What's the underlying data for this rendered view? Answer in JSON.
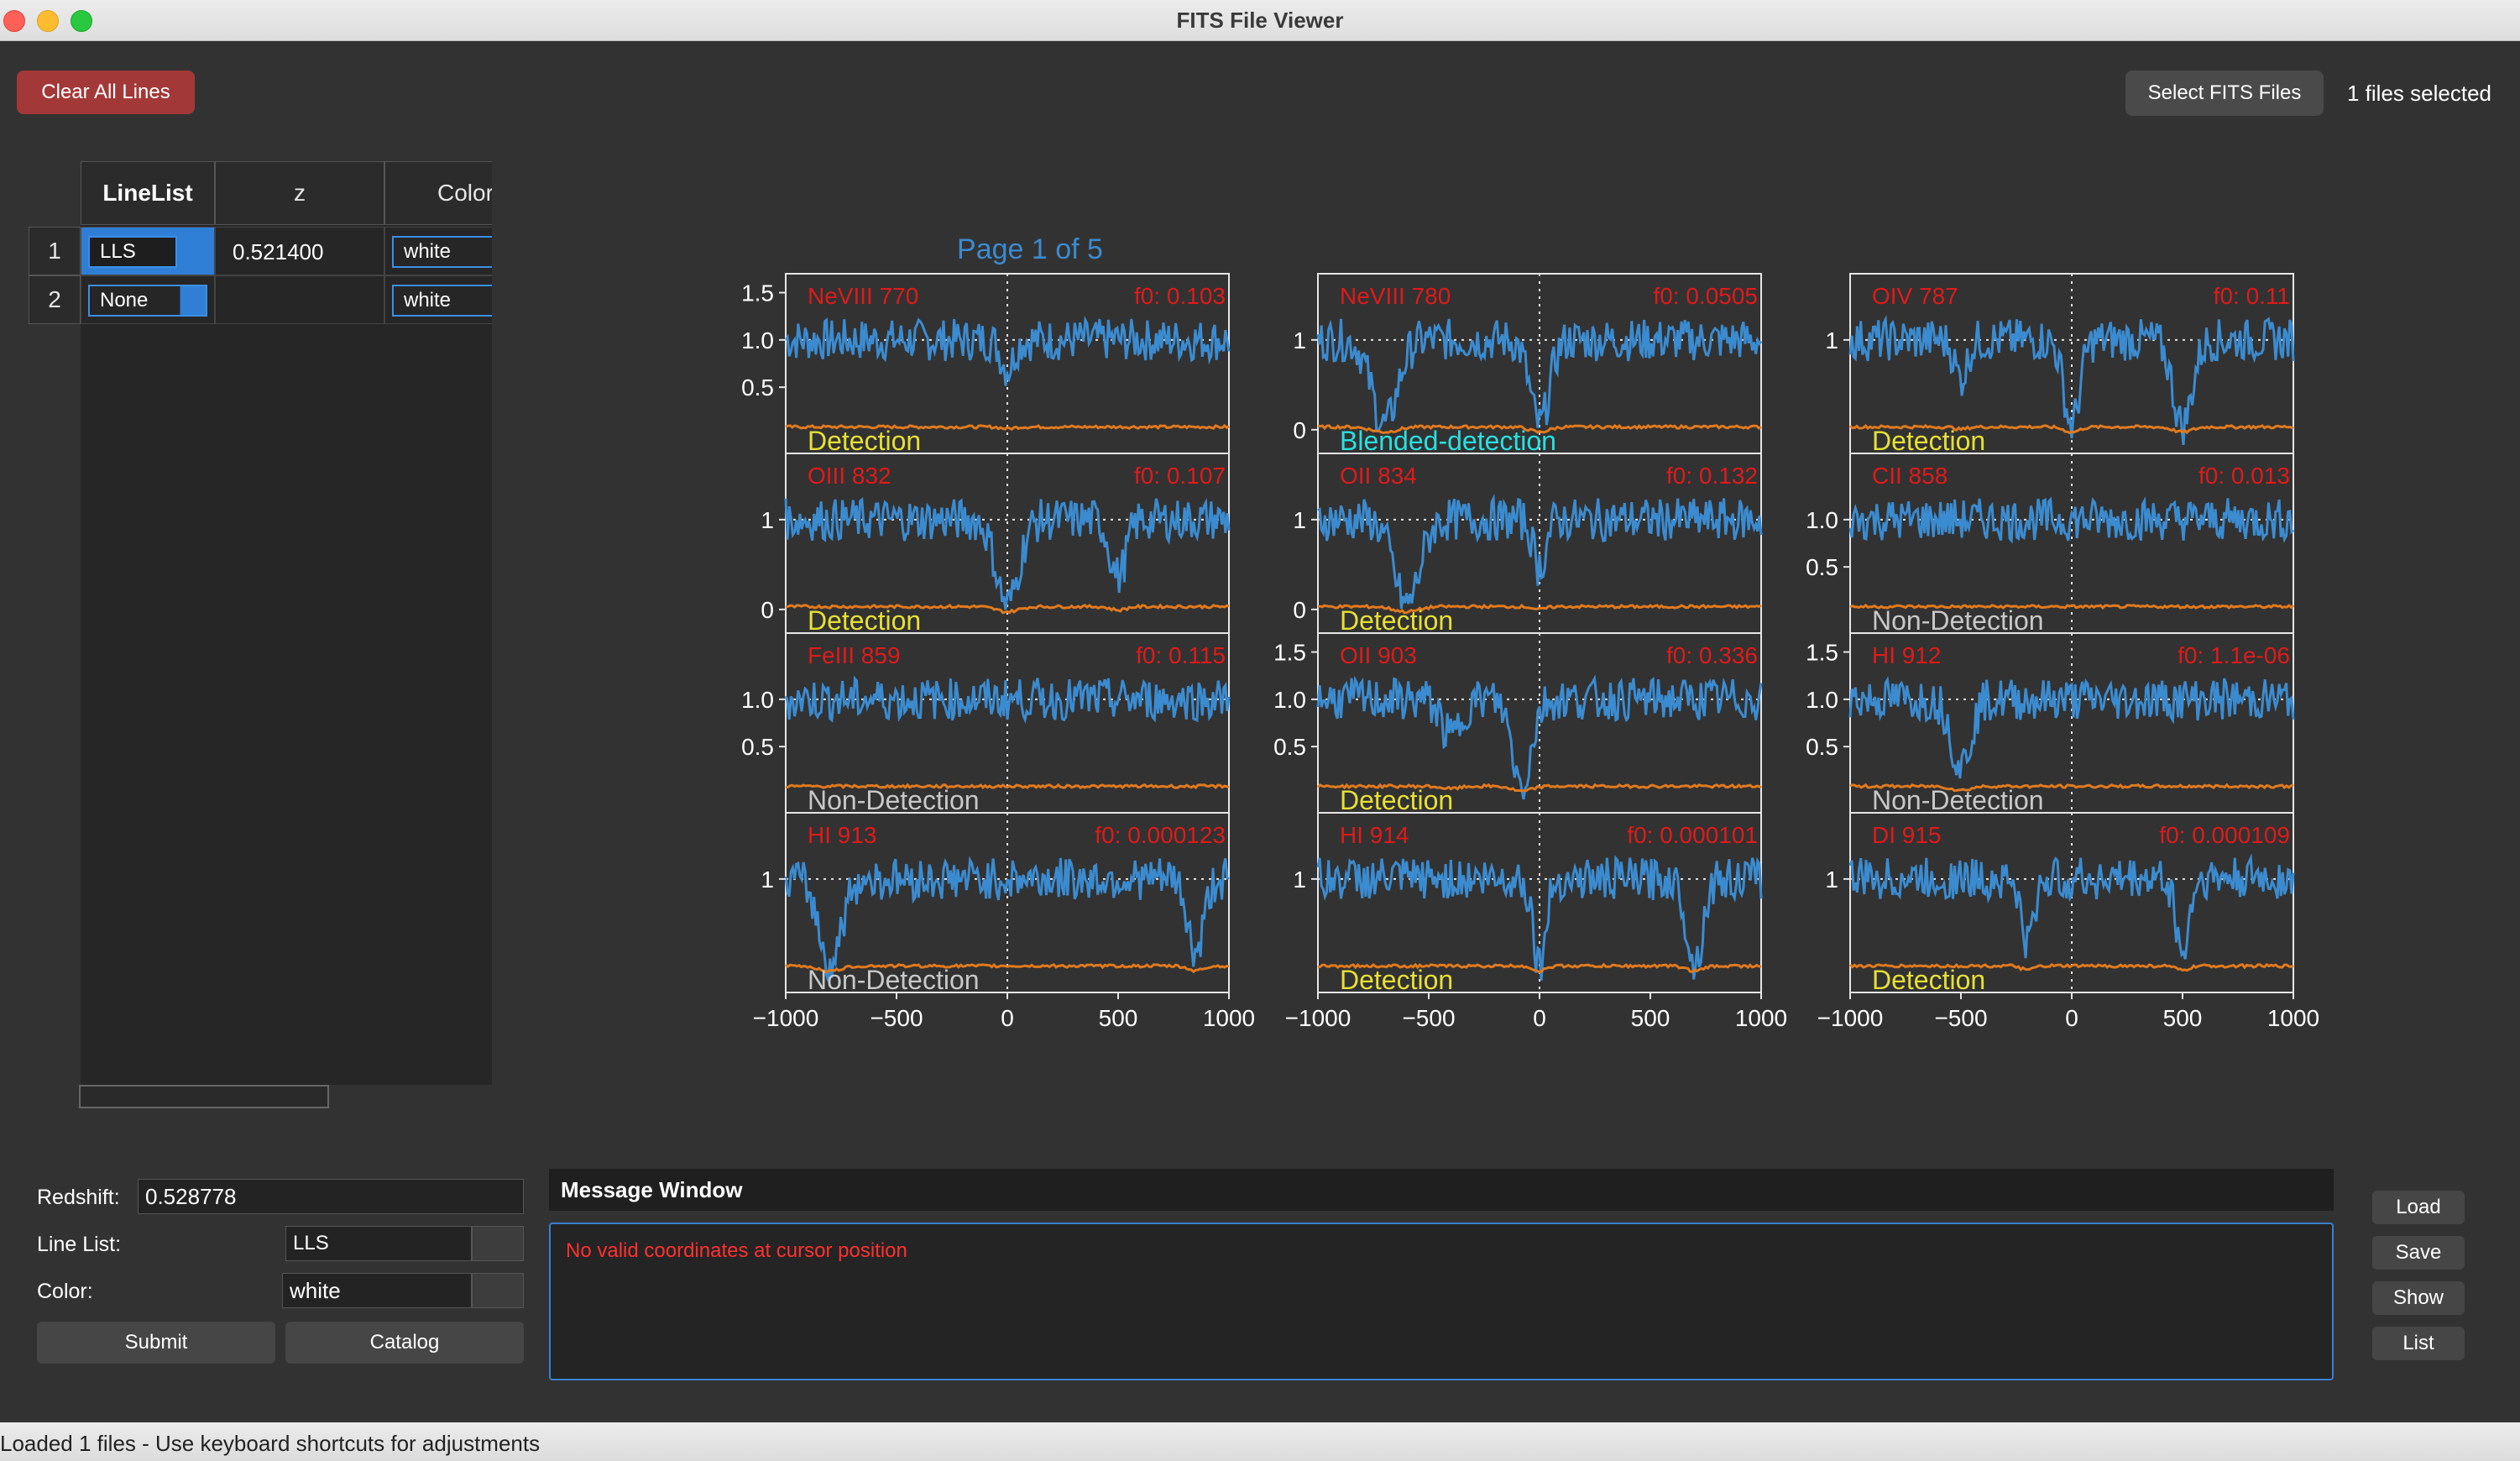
{
  "window": {
    "title": "FITS File Viewer"
  },
  "toolbar": {
    "clear_all_lines": "Clear All Lines",
    "select_fits_files": "Select FITS Files",
    "files_selected": "1 files selected"
  },
  "table": {
    "headers": [
      "LineList",
      "z",
      "Color"
    ],
    "rows": [
      {
        "num": "1",
        "linelist": "LLS",
        "z": "0.521400",
        "color": "white",
        "selected": true
      },
      {
        "num": "2",
        "linelist": "None",
        "z": "",
        "color": "white",
        "selected": false
      }
    ]
  },
  "plot_page": "Page 1 of 5",
  "chart_data": {
    "type": "line",
    "grid": "3x4 stacked panels of normalized flux vs velocity",
    "xlim": [
      -1000,
      1000
    ],
    "xticks": [
      "−1000",
      "−500",
      "0",
      "500",
      "1000"
    ],
    "series_colors": {
      "flux": "#3b8bd0",
      "error": "#e07a1f",
      "label": "#e01a1a",
      "detection": "#e6e034",
      "blended": "#28e0e0",
      "nondetection": "#c8c8c8"
    },
    "panels": [
      {
        "line": "NeVIII 770",
        "f0": "f0: 0.103",
        "status": "Detection",
        "yticks": [
          "1.5",
          "1.0",
          "0.5"
        ],
        "dips": [
          [
            0,
            40,
            0.3
          ]
        ]
      },
      {
        "line": "NeVIII 780",
        "f0": "f0: 0.0505",
        "status": "Blended-detection",
        "yticks": [
          "1",
          "0"
        ],
        "dips": [
          [
            -700,
            80,
            0.9
          ],
          [
            0,
            60,
            0.9
          ]
        ]
      },
      {
        "line": "OIV 787",
        "f0": "f0: 0.11",
        "status": "Detection",
        "yticks": [
          "1"
        ],
        "dips": [
          [
            0,
            50,
            0.9
          ],
          [
            -500,
            40,
            0.4
          ],
          [
            500,
            60,
            0.9
          ]
        ]
      },
      {
        "line": "OIII 832",
        "f0": "f0: 0.107",
        "status": "Detection",
        "yticks": [
          "1",
          "0"
        ],
        "dips": [
          [
            0,
            70,
            0.9
          ],
          [
            500,
            50,
            0.6
          ]
        ]
      },
      {
        "line": "OII 834",
        "f0": "f0: 0.132",
        "status": "Detection",
        "yticks": [
          "1",
          "0"
        ],
        "dips": [
          [
            -600,
            80,
            0.9
          ],
          [
            0,
            40,
            0.5
          ]
        ]
      },
      {
        "line": "CII 858",
        "f0": "f0: 0.013",
        "status": "Non-Detection",
        "yticks": [
          "1.0",
          "0.5"
        ],
        "dips": []
      },
      {
        "line": "FeIII 859",
        "f0": "f0: 0.115",
        "status": "Non-Detection",
        "yticks": [
          "1.0",
          "0.5"
        ],
        "dips": []
      },
      {
        "line": "OII 903",
        "f0": "f0: 0.336",
        "status": "Detection",
        "yticks": [
          "1.5",
          "1.0",
          "0.5"
        ],
        "dips": [
          [
            -80,
            60,
            0.9
          ],
          [
            -400,
            60,
            0.4
          ]
        ]
      },
      {
        "line": "HI 912",
        "f0": "f0: 1.1e-06",
        "status": "Non-Detection",
        "yticks": [
          "1.5",
          "1.0",
          "0.5"
        ],
        "dips": [
          [
            -500,
            60,
            0.7
          ]
        ]
      },
      {
        "line": "HI 913",
        "f0": "f0: 0.000123",
        "status": "Non-Detection",
        "yticks": [
          "1"
        ],
        "dips": [
          [
            -800,
            70,
            0.9
          ],
          [
            850,
            50,
            0.8
          ]
        ]
      },
      {
        "line": "HI 914",
        "f0": "f0: 0.000101",
        "status": "Detection",
        "yticks": [
          "1"
        ],
        "dips": [
          [
            0,
            40,
            0.9
          ],
          [
            700,
            50,
            0.9
          ]
        ]
      },
      {
        "line": "DI 915",
        "f0": "f0: 0.000109",
        "status": "Detection",
        "yticks": [
          "1"
        ],
        "dips": [
          [
            -200,
            40,
            0.7
          ],
          [
            500,
            40,
            0.8
          ]
        ]
      }
    ]
  },
  "form": {
    "redshift_label": "Redshift:",
    "redshift_value": "0.528778",
    "linelist_label": "Line List:",
    "linelist_value": "LLS",
    "color_label": "Color:",
    "color_value": "white",
    "submit": "Submit",
    "catalog": "Catalog"
  },
  "messages": {
    "title": "Message Window",
    "text": "No valid coordinates at cursor position"
  },
  "side_buttons": [
    "Load",
    "Save",
    "Show",
    "List"
  ],
  "status": "Loaded 1 files - Use keyboard shortcuts for adjustments"
}
